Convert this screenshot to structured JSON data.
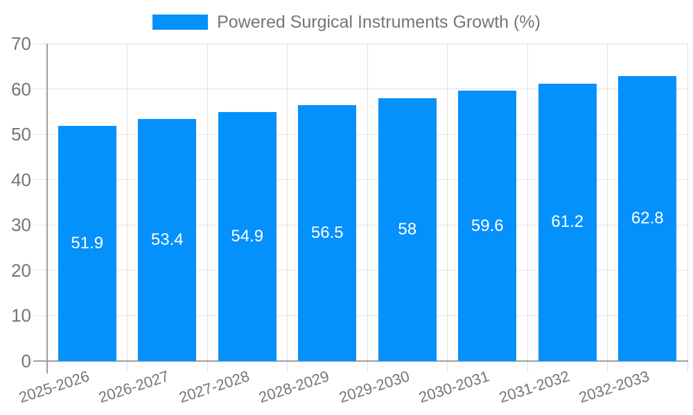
{
  "legend": {
    "label": "Powered Surgical Instruments Growth (%)"
  },
  "chart_data": {
    "type": "bar",
    "title": "",
    "xlabel": "",
    "ylabel": "",
    "series_name": "Powered Surgical Instruments Growth (%)",
    "categories": [
      "2025-2026",
      "2026-2027",
      "2027-2028",
      "2028-2029",
      "2029-2030",
      "2030-2031",
      "2031-2032",
      "2032-2033"
    ],
    "values": [
      51.9,
      53.4,
      54.9,
      56.5,
      58,
      59.6,
      61.2,
      62.8
    ],
    "value_labels": [
      "51.9",
      "53.4",
      "54.9",
      "56.5",
      "58",
      "59.6",
      "61.2",
      "62.8"
    ],
    "ylim": [
      0,
      70
    ],
    "yticks": [
      0,
      10,
      20,
      30,
      40,
      50,
      60,
      70
    ],
    "grid": true,
    "legend_position": "top",
    "bar_color": "#0591fb",
    "grid_color": "#e3e3e3",
    "axis_color": "#9e9e9e",
    "tick_text_color": "#757575",
    "value_label_color": "#ffffff"
  }
}
